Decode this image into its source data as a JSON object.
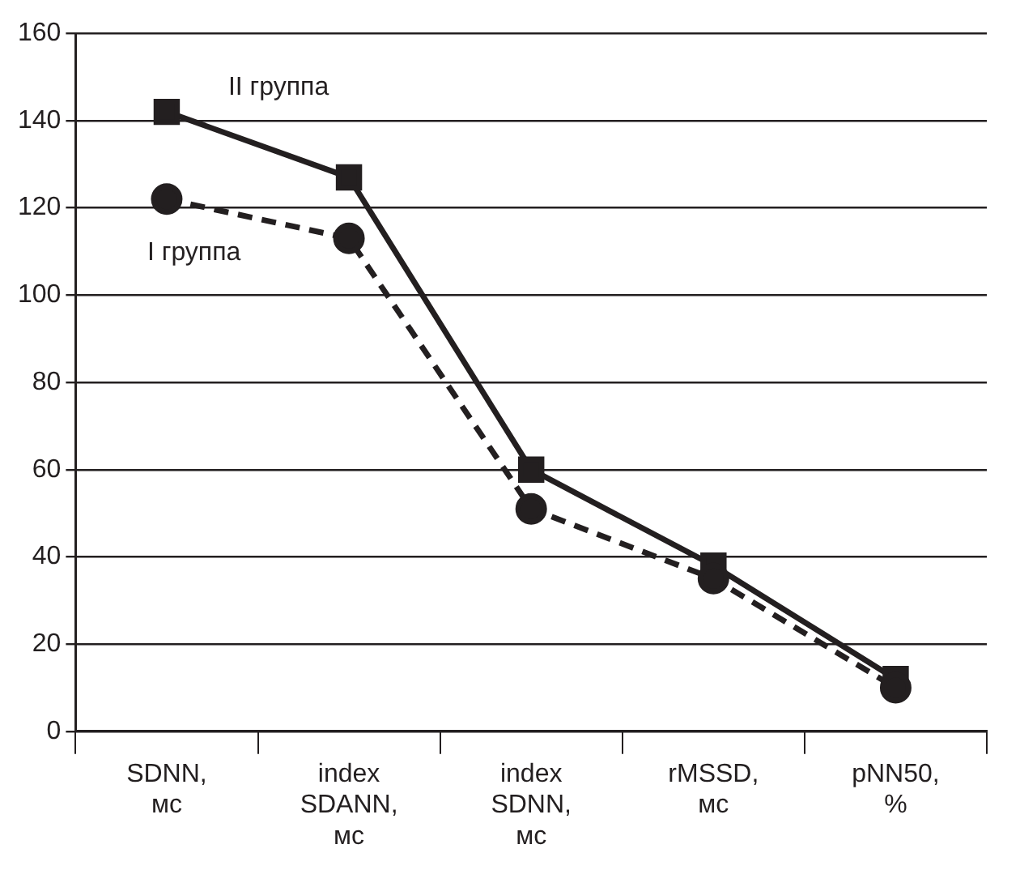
{
  "chart_data": {
    "type": "line",
    "categories": [
      "SDNN, мс",
      "index SDANN, мс",
      "index SDNN, мс",
      "rMSSD, мс",
      "pNN50, %"
    ],
    "series": [
      {
        "name": "II группа",
        "color": "#231f20",
        "marker": "square",
        "line_style": "solid",
        "values": [
          142,
          127,
          60,
          38,
          12
        ]
      },
      {
        "name": "I группа",
        "color": "#231f20",
        "marker": "circle",
        "line_style": "dashed",
        "values": [
          122,
          113,
          51,
          35,
          10
        ]
      }
    ],
    "ylim": [
      0,
      160
    ],
    "yticks": [
      0,
      20,
      40,
      60,
      80,
      100,
      120,
      140,
      160
    ],
    "grid": "y",
    "legend": false
  }
}
